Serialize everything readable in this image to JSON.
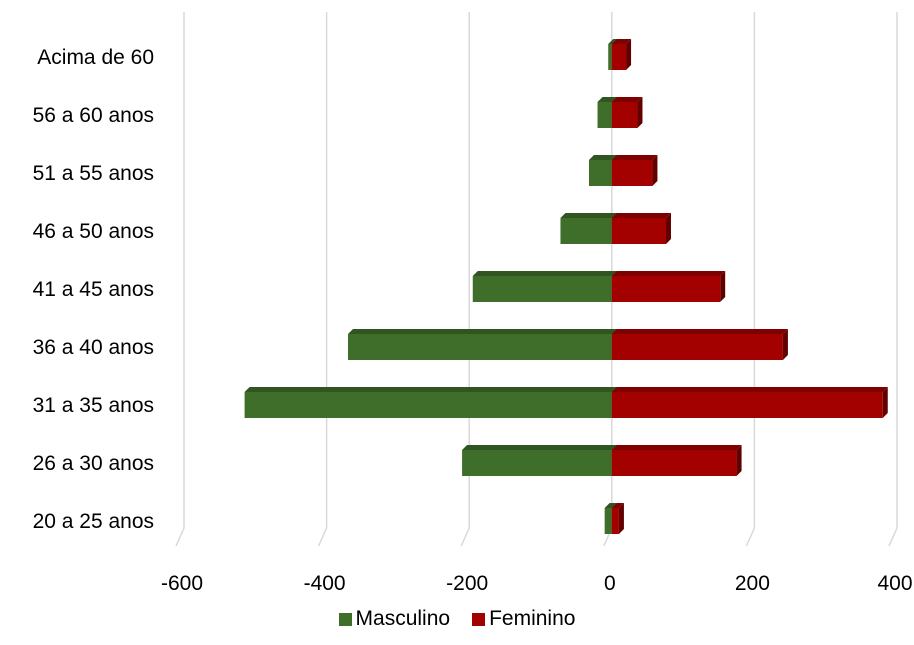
{
  "chart_data": {
    "type": "bar",
    "orientation": "horizontal",
    "stacked": true,
    "style": "3d",
    "categories": [
      "20 a 25 anos",
      "26 a 30 anos",
      "31 a 35 anos",
      "36 a 40 anos",
      "41 a 45 anos",
      "46 a 50 anos",
      "51 a 55 anos",
      "56 a 60 anos",
      "Acima de 60"
    ],
    "series": [
      {
        "name": "Masculino",
        "color": "#3f6d2a",
        "values": [
          -10,
          -210,
          -515,
          -370,
          -195,
          -72,
          -32,
          -20,
          -5
        ]
      },
      {
        "name": "Feminino",
        "color": "#a30000",
        "values": [
          10,
          175,
          380,
          240,
          152,
          76,
          57,
          36,
          20
        ]
      }
    ],
    "xlim": [
      -600,
      400
    ],
    "xticks": [
      -600,
      -400,
      -200,
      0,
      200,
      400
    ],
    "xtick_labels": [
      "-600",
      "-400",
      "-200",
      "0",
      "200",
      "400"
    ],
    "grid": true,
    "legend_position": "bottom"
  }
}
